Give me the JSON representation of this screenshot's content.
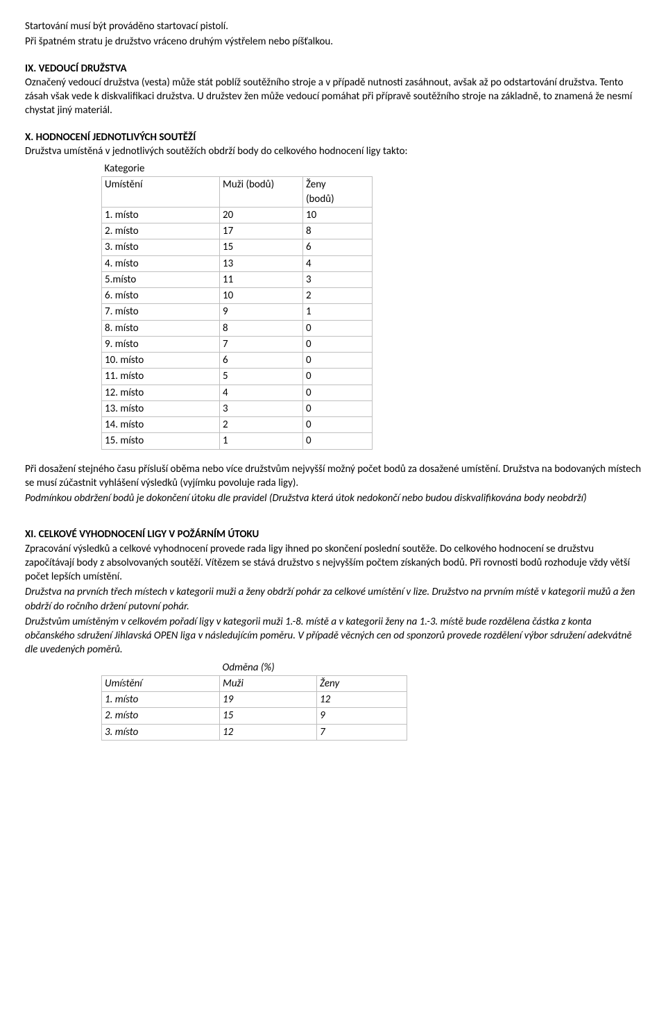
{
  "intro": {
    "p1": "Startování musí být prováděno startovací pistolí.",
    "p2": "Při špatném stratu je družstvo vráceno druhým výstřelem nebo píšťalkou."
  },
  "sec9": {
    "heading": "IX. VEDOUCÍ DRUŽSTVA",
    "body": "Označený vedoucí družstva (vesta) může stát poblíž soutěžního stroje a v případě nutnosti zasáhnout, avšak až po odstartování družstva. Tento zásah však vede k diskvalifikaci družstva. U družstev žen může vedoucí pomáhat při přípravě soutěžního stroje na základně, to znamená že nesmí chystat jiný materiál."
  },
  "sec10": {
    "heading": "X. HODNOCENÍ JEDNOTLIVÝCH SOUTĚŽÍ",
    "intro": "Družstva umístěná v jednotlivých soutěžích obdrží body do celkového hodnocení ligy takto:",
    "table": {
      "kategorie": "Kategorie",
      "h_umisteni": "Umístění",
      "h_muzi": "Muži (bodů)",
      "h_zeny_l1": "Ženy",
      "h_zeny_l2": "(bodů)",
      "rows": [
        {
          "u": "1. místo",
          "m": "20",
          "z": "10"
        },
        {
          "u": "2. místo",
          "m": "17",
          "z": "8"
        },
        {
          "u": "3. místo",
          "m": "15",
          "z": "6"
        },
        {
          "u": "4. místo",
          "m": "13",
          "z": "4"
        },
        {
          "u": "5.místo",
          "m": "11",
          "z": "3"
        },
        {
          "u": "6. místo",
          "m": "10",
          "z": "2"
        },
        {
          "u": "7. místo",
          "m": "9",
          "z": "1"
        },
        {
          "u": "8. místo",
          "m": "8",
          "z": "0"
        },
        {
          "u": "9. místo",
          "m": "7",
          "z": "0"
        },
        {
          "u": "10. místo",
          "m": "6",
          "z": "0"
        },
        {
          "u": "11. místo",
          "m": "5",
          "z": "0"
        },
        {
          "u": "12. místo",
          "m": "4",
          "z": "0"
        },
        {
          "u": "13. místo",
          "m": "3",
          "z": "0"
        },
        {
          "u": "14. místo",
          "m": "2",
          "z": "0"
        },
        {
          "u": "15. místo",
          "m": "1",
          "z": "0"
        }
      ]
    },
    "after1": "Při dosažení stejného času přísluší oběma nebo více družstvům nejvyšší možný počet bodů za dosažené umístění. Družstva na bodovaných místech se musí zúčastnit vyhlášení výsledků (vyjímku povoluje rada ligy).",
    "after2_italic": "Podmínkou obdržení bodů je dokončení útoku dle pravidel (Družstva která útok nedokončí nebo budou diskvalifikována body neobdrží)"
  },
  "sec11": {
    "heading": "XI. CELKOVÉ VYHODNOCENÍ LIGY V POŽÁRNÍM ÚTOKU",
    "p1": "Zpracování výsledků a celkové vyhodnocení provede rada ligy ihned po skončení poslední soutěže. Do celkového hodnocení se družstvu započítávají body z absolvovaných soutěží. Vítězem se stává družstvo s nejvyšším počtem získaných bodů. Při rovnosti bodů rozhoduje vždy větší počet lepších umístění.",
    "p2_italic": "Družstva na prvních třech místech v kategorii muži a ženy obdrží pohár za celkové umístění v lize. Družstvo na prvním místě v kategorii mužů a žen obdrží do ročního držení putovní pohár.",
    "p3_italic": "Družstvům umístěným v celkovém pořadí ligy v kategorii muži 1.-8. místě a v kategorii ženy na 1.-3. místě bude rozdělena částka z konta občanského sdružení Jihlavská OPEN liga v následujícím poměru. V případě věcných cen od sponzorů provede rozdělení výbor sdružení adekvátně dle uvedených poměrů.",
    "table": {
      "odmena": "Odměna (%)",
      "h_umisteni": "Umístění",
      "h_muzi": "Muži",
      "h_zeny": "Ženy",
      "rows": [
        {
          "u": "1. místo",
          "m": "19",
          "z": "12"
        },
        {
          "u": "2. místo",
          "m": "15",
          "z": "9"
        },
        {
          "u": "3. místo",
          "m": "12",
          "z": "7"
        }
      ]
    }
  }
}
